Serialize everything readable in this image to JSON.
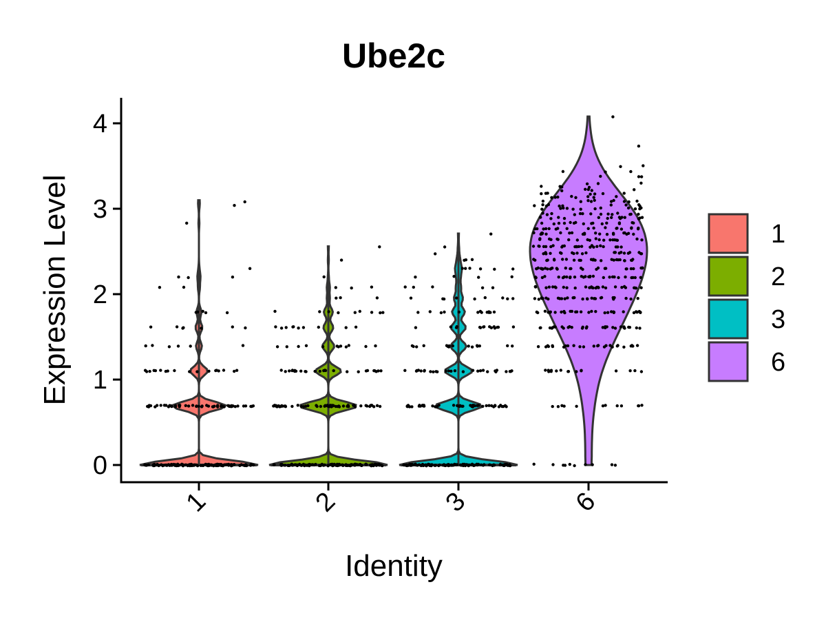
{
  "chart_data": {
    "type": "violin",
    "title": "Ube2c",
    "xlabel": "Identity",
    "ylabel": "Expression Level",
    "ylim": [
      -0.2,
      4.3
    ],
    "yticks": [
      0,
      1,
      2,
      3,
      4
    ],
    "categories": [
      "1",
      "2",
      "3",
      "6"
    ],
    "colors": [
      "#F8766D",
      "#7CAE00",
      "#00BFC4",
      "#C77CFF"
    ],
    "legend": {
      "position": "right",
      "entries": [
        "1",
        "2",
        "3",
        "6"
      ]
    },
    "grid": false,
    "points_shown": true,
    "series": [
      {
        "category": "1",
        "max": 3.1,
        "levels": [
          {
            "y": 0,
            "count": 120
          },
          {
            "y": 0.69,
            "count": 55
          },
          {
            "y": 1.1,
            "count": 18
          },
          {
            "y": 1.39,
            "count": 6
          },
          {
            "y": 1.61,
            "count": 7
          },
          {
            "y": 1.79,
            "count": 5
          },
          {
            "y": 2.08,
            "count": 2
          },
          {
            "y": 2.2,
            "count": 3
          },
          {
            "y": 2.3,
            "count": 1
          },
          {
            "y": 2.83,
            "count": 1
          },
          {
            "y": 3.04,
            "count": 1
          },
          {
            "y": 3.09,
            "count": 1
          }
        ]
      },
      {
        "category": "2",
        "max": 2.56,
        "levels": [
          {
            "y": 0,
            "count": 120
          },
          {
            "y": 0.69,
            "count": 58
          },
          {
            "y": 1.1,
            "count": 26
          },
          {
            "y": 1.39,
            "count": 12
          },
          {
            "y": 1.61,
            "count": 10
          },
          {
            "y": 1.79,
            "count": 9
          },
          {
            "y": 1.95,
            "count": 3
          },
          {
            "y": 2.08,
            "count": 3
          },
          {
            "y": 2.2,
            "count": 1
          },
          {
            "y": 2.4,
            "count": 1
          },
          {
            "y": 2.56,
            "count": 1
          }
        ]
      },
      {
        "category": "3",
        "max": 2.71,
        "levels": [
          {
            "y": 0,
            "count": 120
          },
          {
            "y": 0.69,
            "count": 48
          },
          {
            "y": 1.1,
            "count": 28
          },
          {
            "y": 1.39,
            "count": 16
          },
          {
            "y": 1.61,
            "count": 15
          },
          {
            "y": 1.79,
            "count": 13
          },
          {
            "y": 1.95,
            "count": 9
          },
          {
            "y": 2.08,
            "count": 5
          },
          {
            "y": 2.2,
            "count": 4
          },
          {
            "y": 2.3,
            "count": 6
          },
          {
            "y": 2.4,
            "count": 3
          },
          {
            "y": 2.48,
            "count": 1
          },
          {
            "y": 2.56,
            "count": 1
          },
          {
            "y": 2.71,
            "count": 1
          }
        ]
      },
      {
        "category": "6",
        "max": 4.08,
        "levels": [
          {
            "y": 0,
            "count": 10
          },
          {
            "y": 0.69,
            "count": 12
          },
          {
            "y": 1.1,
            "count": 16
          },
          {
            "y": 1.39,
            "count": 26
          },
          {
            "y": 1.61,
            "count": 30
          },
          {
            "y": 1.79,
            "count": 32
          },
          {
            "y": 1.95,
            "count": 30
          },
          {
            "y": 2.08,
            "count": 30
          },
          {
            "y": 2.2,
            "count": 28
          },
          {
            "y": 2.3,
            "count": 30
          },
          {
            "y": 2.4,
            "count": 26
          },
          {
            "y": 2.48,
            "count": 22
          },
          {
            "y": 2.56,
            "count": 24
          },
          {
            "y": 2.64,
            "count": 20
          },
          {
            "y": 2.71,
            "count": 22
          },
          {
            "y": 2.77,
            "count": 18
          },
          {
            "y": 2.83,
            "count": 16
          },
          {
            "y": 2.89,
            "count": 14
          },
          {
            "y": 2.94,
            "count": 14
          },
          {
            "y": 3.0,
            "count": 12
          },
          {
            "y": 3.04,
            "count": 10
          },
          {
            "y": 3.09,
            "count": 10
          },
          {
            "y": 3.14,
            "count": 8
          },
          {
            "y": 3.18,
            "count": 7
          },
          {
            "y": 3.22,
            "count": 5
          },
          {
            "y": 3.26,
            "count": 4
          },
          {
            "y": 3.3,
            "count": 3
          },
          {
            "y": 3.37,
            "count": 3
          },
          {
            "y": 3.43,
            "count": 3
          },
          {
            "y": 3.5,
            "count": 2
          },
          {
            "y": 3.74,
            "count": 1
          },
          {
            "y": 4.08,
            "count": 1
          }
        ]
      }
    ]
  }
}
